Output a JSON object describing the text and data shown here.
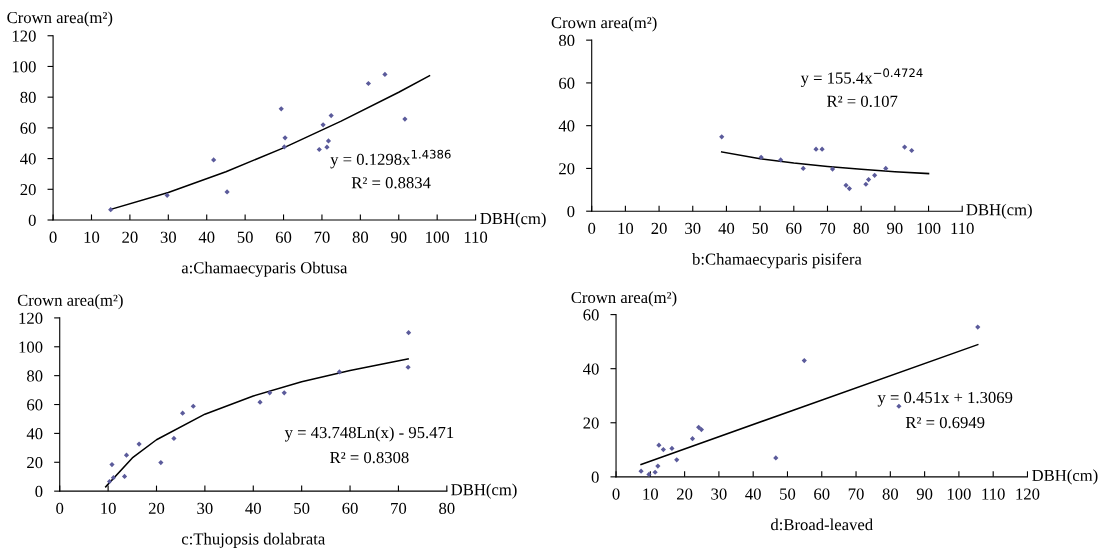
{
  "chart_data": [
    {
      "type": "scatter",
      "title": "a:Chamaecyparis Obtusa",
      "xlabel": "DBH(cm)",
      "ylabel": "Crown area(m²)",
      "xlim": [
        0,
        110
      ],
      "xticks": [
        0,
        10,
        20,
        30,
        40,
        50,
        60,
        70,
        80,
        90,
        100,
        110
      ],
      "ylim": [
        0,
        120
      ],
      "yticks": [
        0,
        20,
        40,
        60,
        80,
        100,
        120
      ],
      "grid": false,
      "annotations": [
        "y = 0.1298x$^{1.4386}$",
        "R² = 0.8834"
      ],
      "series": [
        {
          "marker": "diamond",
          "color": "#5b5b9b",
          "x": [
            15.0,
            29.7,
            41.8,
            45.3,
            59.4,
            60.4,
            60.2,
            69.3,
            70.3,
            71.3,
            71.7,
            72.4,
            82.1,
            86.4,
            91.6
          ],
          "values": [
            6.7,
            16.1,
            39.1,
            18.3,
            72.4,
            53.5,
            47.6,
            45.9,
            62.0,
            47.4,
            51.5,
            68.0,
            88.9,
            94.8,
            65.7
          ]
        },
        {
          "type": "line",
          "marker": "none",
          "line_style": "solid",
          "color": "#000000",
          "x": [
            15,
            30,
            45,
            60,
            75,
            90,
            98
          ],
          "values": [
            6.9,
            17.9,
            31.4,
            47.0,
            64.4,
            83.2,
            94.0
          ]
        }
      ]
    },
    {
      "type": "scatter",
      "title": "b:Chamaecyparis pisifera",
      "xlabel": "DBH(cm)",
      "ylabel": "Crown area(m²)",
      "xlim": [
        0,
        110
      ],
      "xticks": [
        0,
        10,
        20,
        30,
        40,
        50,
        60,
        70,
        80,
        90,
        100,
        110
      ],
      "ylim": [
        0,
        80
      ],
      "yticks": [
        0,
        20,
        40,
        60,
        80
      ],
      "grid": false,
      "annotations": [
        "y = 155.4x$^{−0.4724}$",
        "R² = 0.107"
      ],
      "series": [
        {
          "marker": "diamond",
          "color": "#5b5b9b",
          "x": [
            38.6,
            50.3,
            56.1,
            62.8,
            66.6,
            68.4,
            71.5,
            75.5,
            76.5,
            81.4,
            82.2,
            84.0,
            87.3,
            92.9,
            95.0
          ],
          "values": [
            34.8,
            25.2,
            24.0,
            20.0,
            29.0,
            29.0,
            19.7,
            12.1,
            10.6,
            12.6,
            14.8,
            16.8,
            20.0,
            30.0,
            28.4
          ]
        },
        {
          "type": "line",
          "marker": "none",
          "line_style": "solid",
          "color": "#000000",
          "x": [
            38.6,
            50,
            60,
            70,
            80,
            90,
            100
          ],
          "values": [
            27.7,
            24.5,
            22.5,
            20.9,
            19.6,
            18.5,
            17.6
          ]
        }
      ]
    },
    {
      "type": "scatter",
      "title": "c:Thujopsis dolabrata",
      "xlabel": "DBH(cm)",
      "ylabel": "Crown area(m²)",
      "xlim": [
        0,
        80
      ],
      "xticks": [
        0,
        10,
        20,
        30,
        40,
        50,
        60,
        70,
        80
      ],
      "ylim": [
        0,
        120
      ],
      "yticks": [
        0,
        20,
        40,
        60,
        80,
        100,
        120
      ],
      "grid": false,
      "annotations": [
        "y = 43.748Ln(x) - 95.471",
        "R² = 0.8308"
      ],
      "series": [
        {
          "marker": "diamond",
          "color": "#5b5b9b",
          "x": [
            10.3,
            11.1,
            10.8,
            13.4,
            13.8,
            16.4,
            20.9,
            23.6,
            25.4,
            27.6,
            41.4,
            43.4,
            46.4,
            57.8,
            72.1,
            72.0
          ],
          "values": [
            6.7,
            9.3,
            18.4,
            10.2,
            24.9,
            32.6,
            19.8,
            36.5,
            54.0,
            58.8,
            61.6,
            68.1,
            68.1,
            82.6,
            109.8,
            85.8
          ]
        },
        {
          "type": "line",
          "marker": "none",
          "line_style": "solid",
          "color": "#000000",
          "x": [
            9.5,
            15,
            20,
            30,
            40,
            50,
            60,
            72
          ],
          "values": [
            3.0,
            23.0,
            35.6,
            53.3,
            65.9,
            75.7,
            83.6,
            91.6
          ]
        }
      ]
    },
    {
      "type": "scatter",
      "title": "d:Broad-leaved",
      "xlabel": "DBH(cm)",
      "ylabel": "Crown area(m²)",
      "xlim": [
        0,
        120
      ],
      "xticks": [
        0,
        10,
        20,
        30,
        40,
        50,
        60,
        70,
        80,
        90,
        100,
        110,
        120
      ],
      "ylim": [
        0,
        60
      ],
      "yticks": [
        0,
        20,
        40,
        60
      ],
      "grid": false,
      "annotations": [
        "y = 0.451x + 1.3069",
        "R² = 0.6949"
      ],
      "series": [
        {
          "marker": "diamond",
          "color": "#5b5b9b",
          "x": [
            7.3,
            9.6,
            11.4,
            12.2,
            12.5,
            13.8,
            16.3,
            17.7,
            22.3,
            24.1,
            24.9,
            46.6,
            54.9,
            82.5,
            105.5
          ],
          "values": [
            2.1,
            0.9,
            1.7,
            4.0,
            11.7,
            10.1,
            10.5,
            6.3,
            14.1,
            18.3,
            17.5,
            7.0,
            43.0,
            26.1,
            55.4
          ]
        },
        {
          "type": "line",
          "marker": "none",
          "line_style": "solid",
          "color": "#000000",
          "x": [
            7.3,
            56,
            105.5
          ],
          "values": [
            4.6,
            26.6,
            48.9
          ]
        }
      ]
    }
  ]
}
